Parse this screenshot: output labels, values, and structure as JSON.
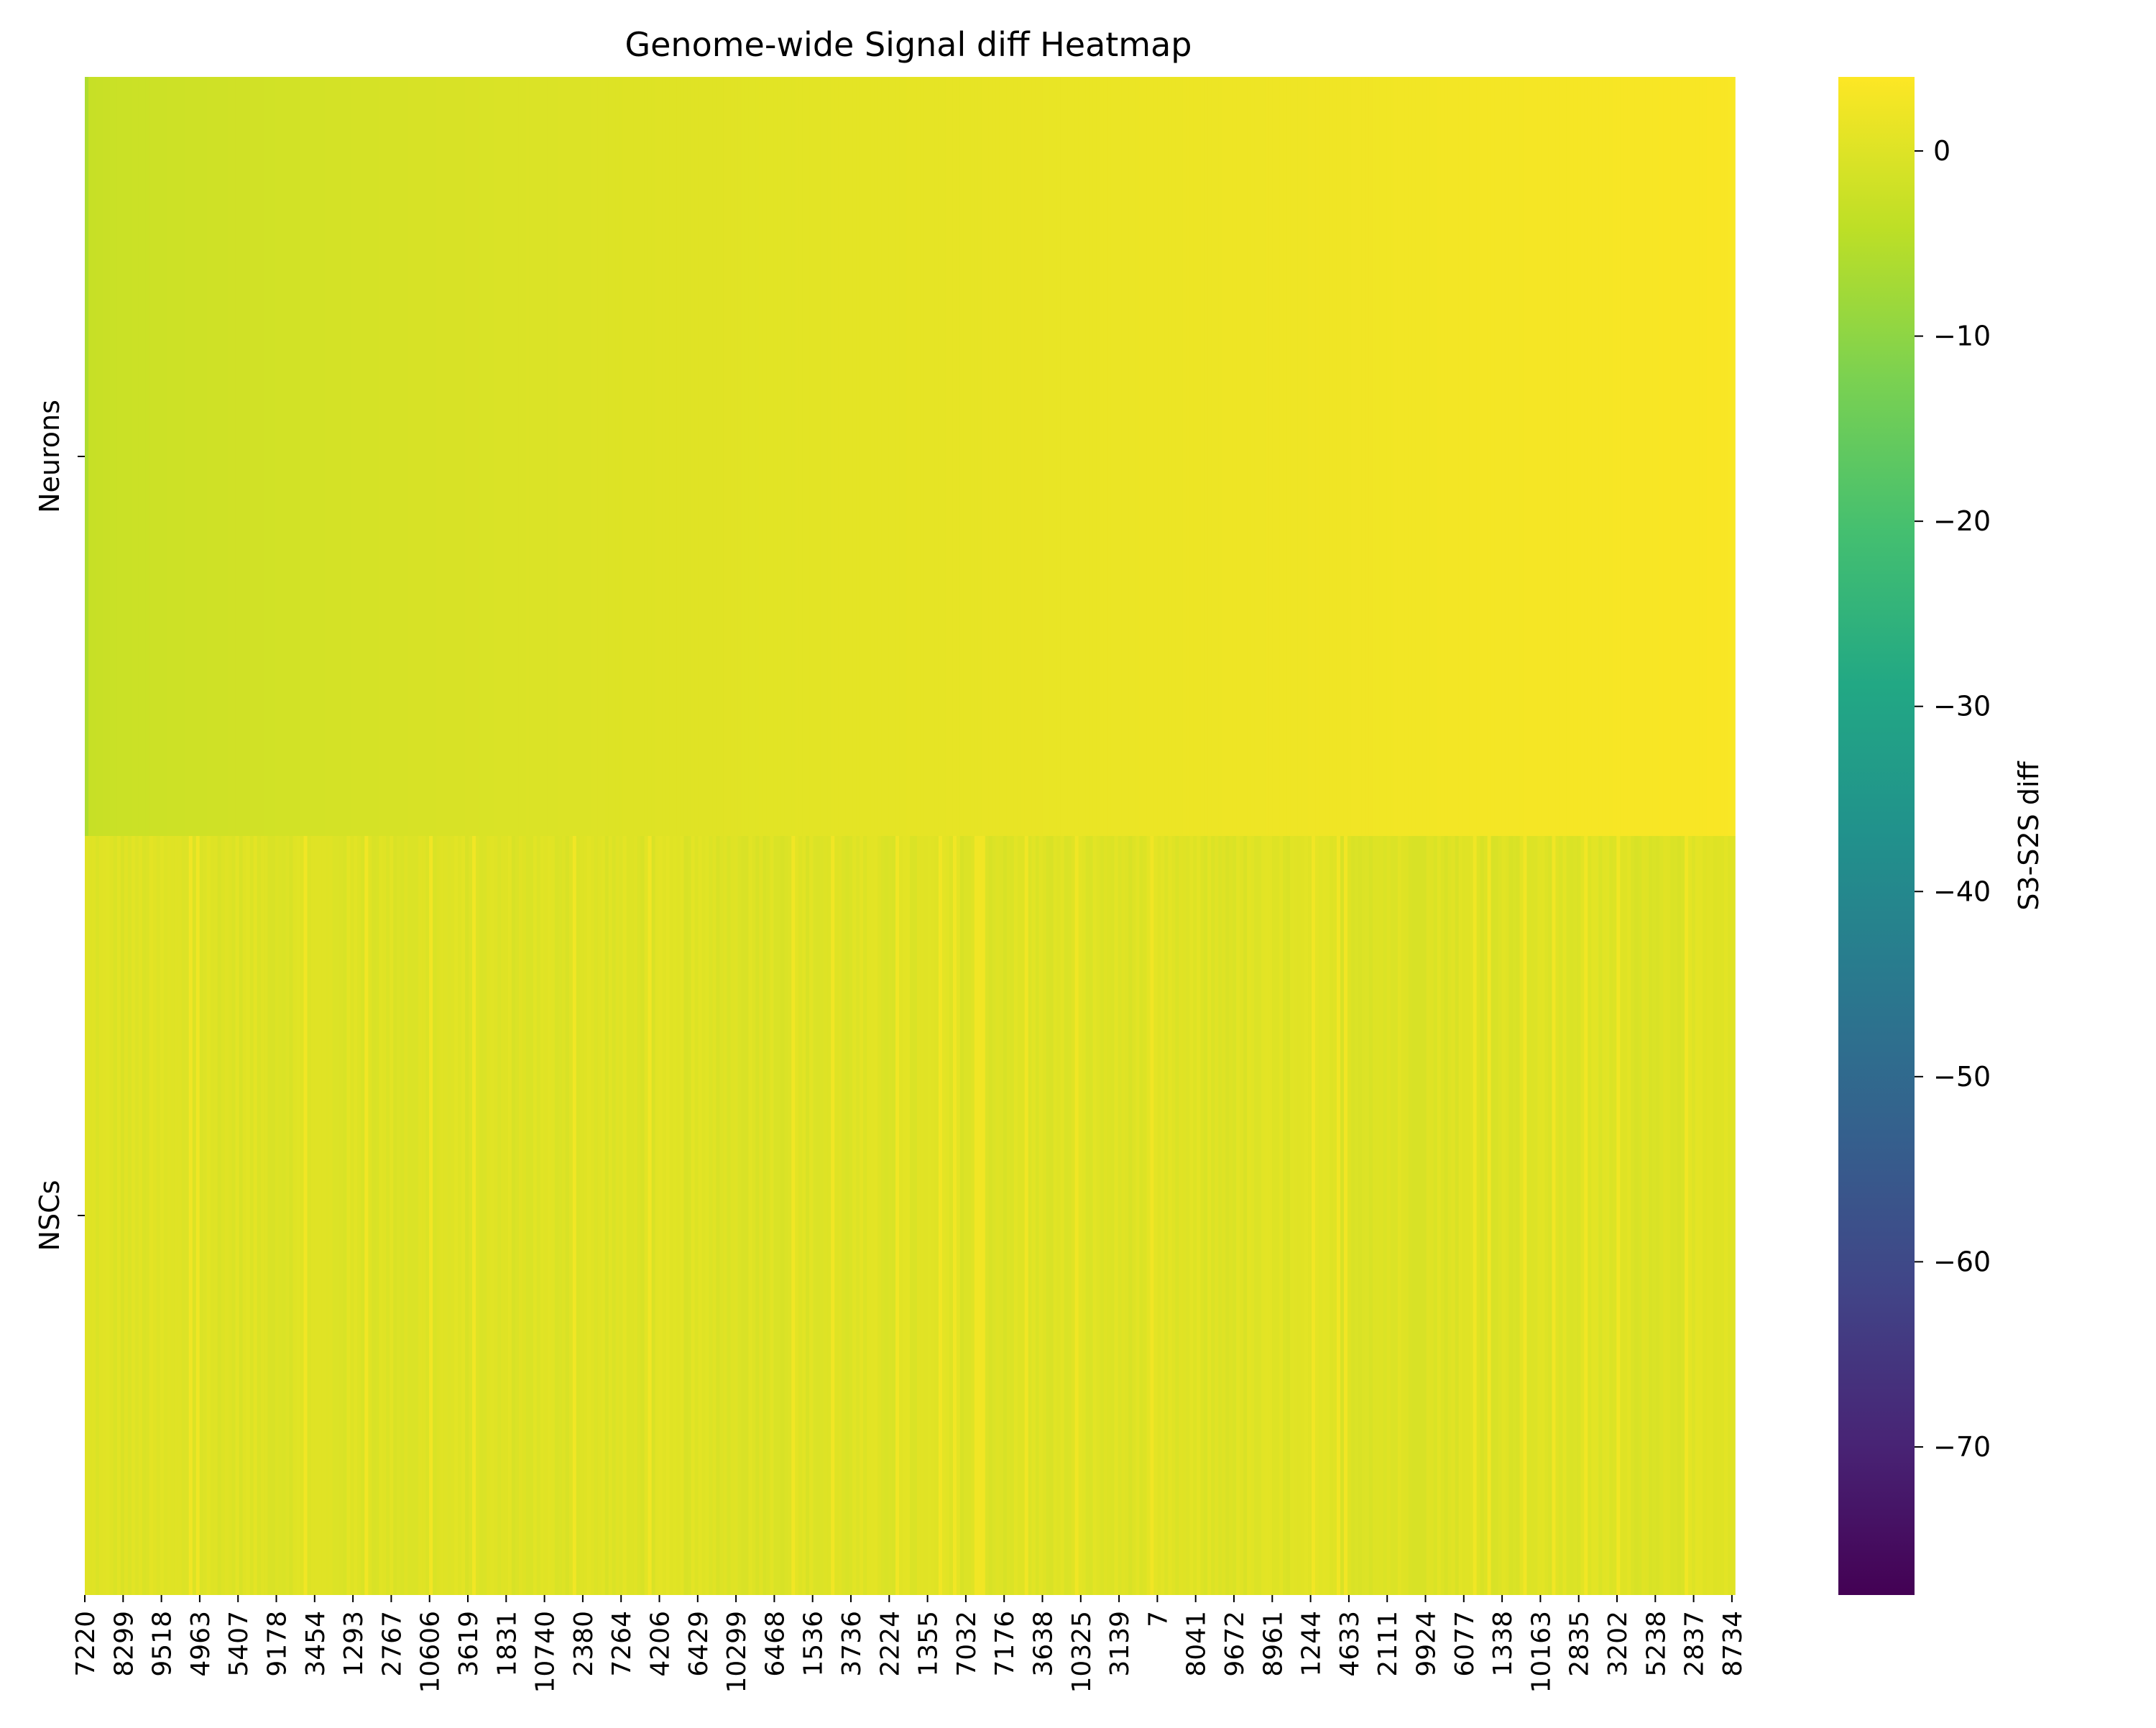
{
  "chart_data": {
    "type": "heatmap",
    "title": "Genome-wide Signal diff Heatmap",
    "xlabel": "",
    "ylabel": "",
    "rows": [
      "Neurons",
      "NSCs"
    ],
    "x_tick_labels": [
      "7220",
      "8299",
      "9518",
      "4963",
      "5407",
      "9178",
      "3454",
      "1293",
      "2767",
      "10606",
      "3619",
      "1831",
      "10740",
      "2380",
      "7264",
      "4206",
      "6429",
      "10299",
      "6468",
      "1536",
      "3736",
      "2224",
      "1355",
      "7032",
      "7176",
      "3638",
      "10325",
      "3139",
      "7",
      "8041",
      "9672",
      "8961",
      "1244",
      "4633",
      "2111",
      "9924",
      "6077",
      "1338",
      "10163",
      "2835",
      "3202",
      "5238",
      "2837",
      "8734"
    ],
    "colorbar": {
      "label": "S3-S2S diff",
      "colormap": "viridis",
      "vmin": -78,
      "vmax": 4,
      "ticks": [
        0,
        -10,
        -20,
        -30,
        -40,
        -50,
        -60,
        -70
      ],
      "tick_labels": [
        "0",
        "−10",
        "−20",
        "−30",
        "−40",
        "−50",
        "−60",
        "−70"
      ]
    },
    "row_values_summary": {
      "Neurons": {
        "start": -3,
        "end": 3.5,
        "trend": "increasing from left to right"
      },
      "NSCs": {
        "typical": 0,
        "variation": "small fluctuations around 0"
      }
    }
  }
}
